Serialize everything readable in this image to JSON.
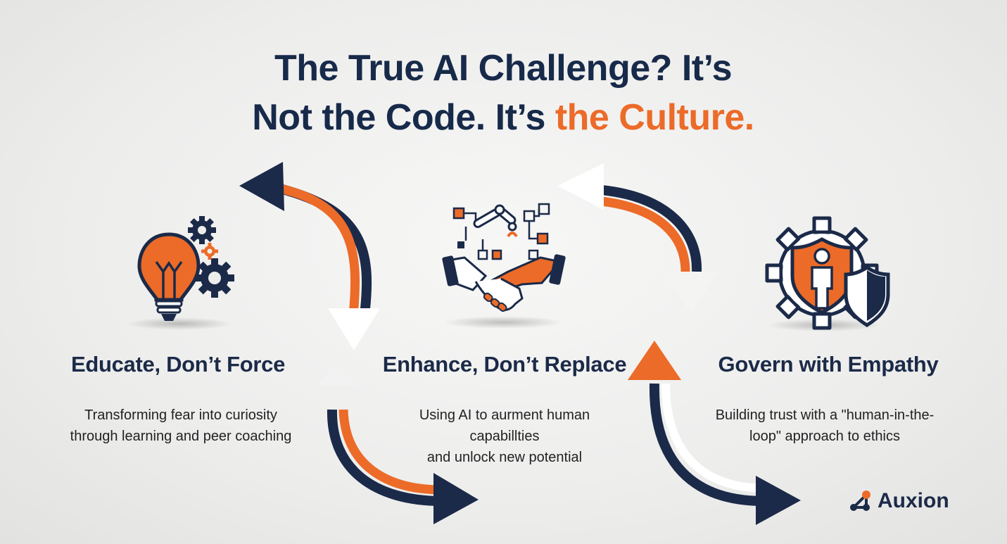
{
  "title": {
    "line1": "The True AI Challenge? It’s",
    "line2_main": "Not the Code. It’s ",
    "line2_accent": "the Culture."
  },
  "pillars": [
    {
      "heading": "Educate, Don’t Force",
      "desc_line1": "Transforming fear into curiosity",
      "desc_line2": "through learning and peer coaching",
      "icon": "lightbulb-gears-icon"
    },
    {
      "heading": "Enhance, Don’t Replace",
      "desc_line1": "Using AI to aurment human capabillties",
      "desc_line2": "and unlock new potential",
      "icon": "robot-arm-handshake-icon"
    },
    {
      "heading": "Govern with Empathy",
      "desc_line1": "Building trust with a \"human-in-the-",
      "desc_line2": "loop\" approach to ethics",
      "icon": "gear-person-shield-icon"
    }
  ],
  "logo": {
    "name": "Auxion"
  },
  "colors": {
    "navy": "#1b2a48",
    "orange": "#ec6b28",
    "background": "#eeeeed"
  }
}
